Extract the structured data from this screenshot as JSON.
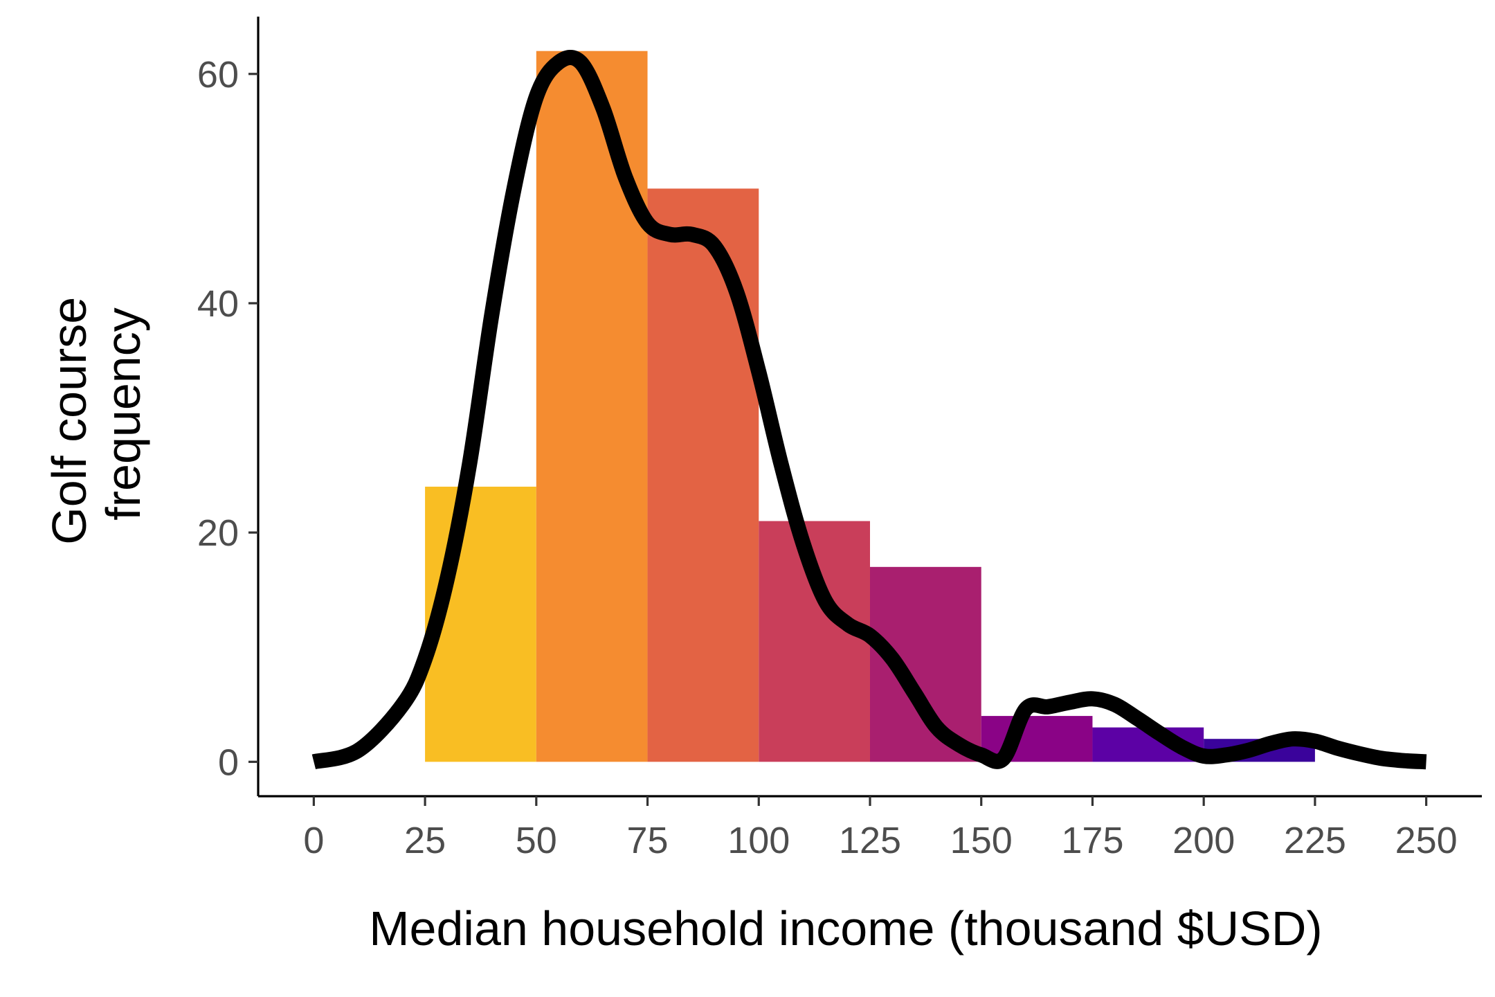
{
  "chart_data": {
    "type": "bar",
    "title": "",
    "xlabel": "Median household income (thousand $USD)",
    "ylabel": [
      "Golf course",
      "frequency"
    ],
    "xlim": [
      -12.5,
      262.5
    ],
    "ylim": [
      -3,
      65
    ],
    "x_ticks": [
      0,
      25,
      50,
      75,
      100,
      125,
      150,
      175,
      200,
      225,
      250
    ],
    "x_tick_labels": [
      "0",
      "25",
      "50",
      "75",
      "100",
      "125",
      "150",
      "175",
      "200",
      "225",
      "250"
    ],
    "y_ticks": [
      0,
      20,
      40,
      60
    ],
    "y_tick_labels": [
      "0",
      "20",
      "40",
      "60"
    ],
    "grid": false,
    "bins": [
      {
        "x0": 25,
        "x1": 50,
        "count": 24,
        "color": "#F9BE23"
      },
      {
        "x0": 50,
        "x1": 75,
        "count": 62,
        "color": "#F58C30"
      },
      {
        "x0": 75,
        "x1": 100,
        "count": 50,
        "color": "#E36344"
      },
      {
        "x0": 100,
        "x1": 125,
        "count": 21,
        "color": "#C93E5A"
      },
      {
        "x0": 125,
        "x1": 150,
        "count": 17,
        "color": "#A91F6F"
      },
      {
        "x0": 150,
        "x1": 175,
        "count": 4,
        "color": "#8A0386"
      },
      {
        "x0": 175,
        "x1": 200,
        "count": 3,
        "color": "#5C01A5"
      },
      {
        "x0": 200,
        "x1": 225,
        "count": 2,
        "color": "#3A039B"
      }
    ],
    "density_curve": {
      "color": "#000000",
      "x": [
        0,
        10,
        20,
        25,
        30,
        35,
        40,
        45,
        50,
        55,
        60,
        65,
        70,
        75,
        80,
        85,
        90,
        95,
        100,
        105,
        110,
        115,
        120,
        125,
        130,
        135,
        140,
        145,
        150,
        155,
        160,
        165,
        170,
        175,
        180,
        185,
        190,
        195,
        200,
        205,
        210,
        215,
        220,
        225,
        230,
        235,
        240,
        245,
        250
      ],
      "y": [
        0,
        1,
        5,
        9,
        16,
        26,
        39,
        50,
        58,
        61,
        61,
        57,
        51,
        47,
        46,
        46,
        45,
        41,
        34,
        26,
        19,
        14,
        12,
        11,
        9,
        6,
        3,
        1.5,
        0.6,
        0.3,
        4.6,
        4.8,
        5.2,
        5.5,
        5.0,
        3.8,
        2.5,
        1.3,
        0.5,
        0.6,
        1.0,
        1.6,
        2.0,
        1.8,
        1.2,
        0.7,
        0.3,
        0.1,
        0
      ]
    }
  }
}
